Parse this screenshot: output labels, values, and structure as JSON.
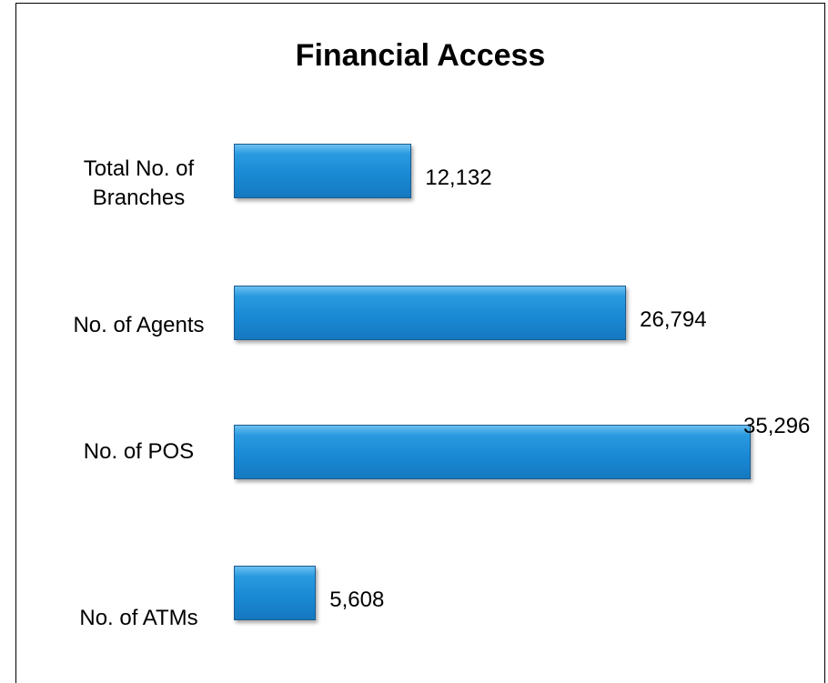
{
  "chart_data": {
    "type": "barh",
    "title": "Financial Access",
    "categories": [
      "Total No. of Branches",
      "No. of Agents",
      "No. of POS",
      "No. of ATMs"
    ],
    "values": [
      12132,
      26794,
      35296,
      5608
    ],
    "value_labels": [
      "12,132",
      "26,794",
      "35,296",
      "5,608"
    ],
    "color": "#1a8ad6"
  }
}
